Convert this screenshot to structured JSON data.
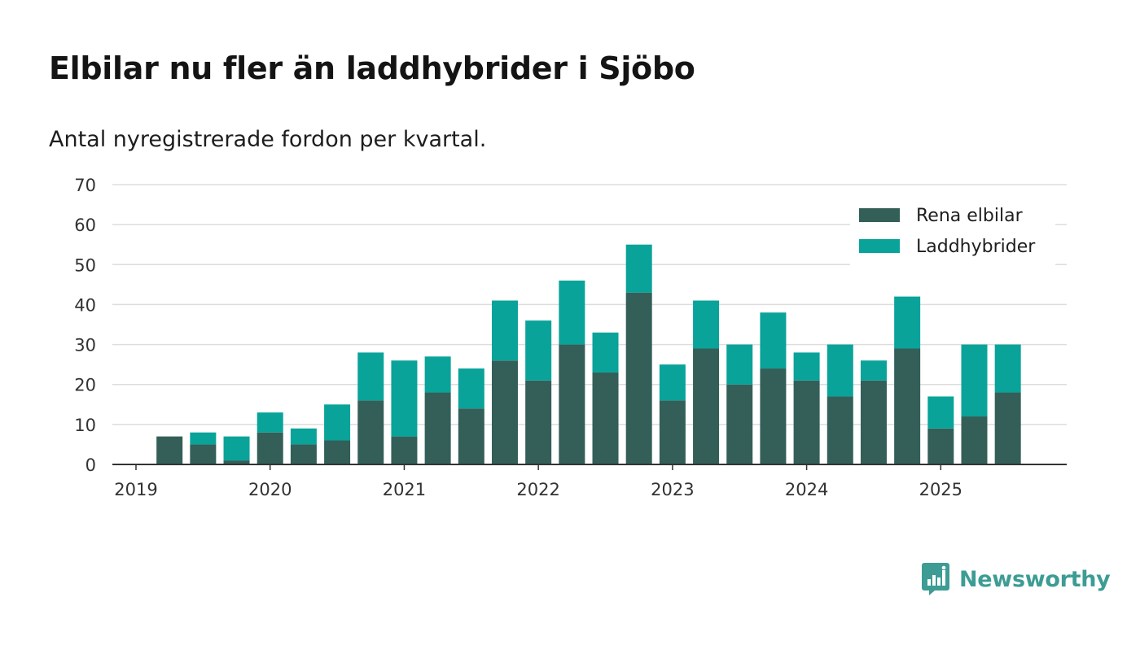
{
  "title": "Elbilar nu fler än laddhybrider i Sjöbo",
  "subtitle": "Antal nyregistrerade fordon per kvartal.",
  "brand": "Newsworthy",
  "colors": {
    "elbilar": "#335f58",
    "laddhybrider": "#09a39a",
    "grid": "#dddddd",
    "axis": "#333333",
    "brand": "#3d9c94"
  },
  "chart_data": {
    "type": "bar",
    "stacked": true,
    "categories": [
      "2019 Q1",
      "2019 Q2",
      "2019 Q3",
      "2019 Q4",
      "2020 Q1",
      "2020 Q2",
      "2020 Q3",
      "2020 Q4",
      "2021 Q1",
      "2021 Q2",
      "2021 Q3",
      "2021 Q4",
      "2022 Q1",
      "2022 Q2",
      "2022 Q3",
      "2022 Q4",
      "2023 Q1",
      "2023 Q2",
      "2023 Q3",
      "2023 Q4",
      "2024 Q1",
      "2024 Q2",
      "2024 Q3",
      "2024 Q4",
      "2025 Q1",
      "2025 Q2",
      "2025 Q3"
    ],
    "series": [
      {
        "name": "Rena elbilar",
        "values": [
          0,
          7,
          5,
          1,
          8,
          5,
          6,
          16,
          7,
          18,
          14,
          26,
          21,
          30,
          23,
          43,
          16,
          29,
          20,
          24,
          21,
          17,
          21,
          29,
          9,
          12,
          18
        ]
      },
      {
        "name": "Laddhybrider",
        "values": [
          0,
          0,
          3,
          6,
          5,
          4,
          9,
          12,
          19,
          9,
          10,
          15,
          15,
          16,
          10,
          12,
          9,
          12,
          10,
          14,
          7,
          13,
          5,
          13,
          8,
          18,
          12
        ]
      }
    ],
    "xticks": [
      "2019",
      "2020",
      "2021",
      "2022",
      "2023",
      "2024",
      "2025"
    ],
    "yticks": [
      0,
      10,
      20,
      30,
      40,
      50,
      60,
      70
    ],
    "ylim": [
      0,
      70
    ],
    "xlabel": "",
    "ylabel": "",
    "legend_position": "top-right"
  }
}
